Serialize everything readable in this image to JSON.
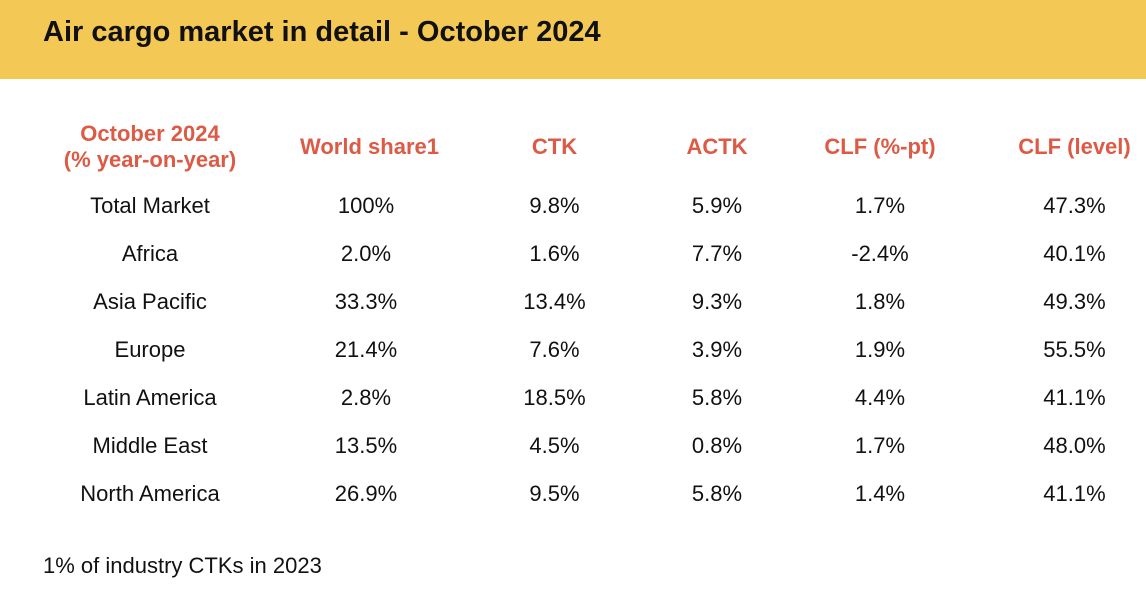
{
  "header": {
    "title": "Air cargo market in detail - October 2024"
  },
  "table": {
    "columns": [
      {
        "line1": "October 2024",
        "line2": "(% year-on-year)"
      },
      {
        "line1": "World share1"
      },
      {
        "line1": "CTK"
      },
      {
        "line1": "ACTK"
      },
      {
        "line1": "CLF (%-pt)"
      },
      {
        "line1": "CLF (level)"
      }
    ],
    "rows": [
      {
        "region": "Total Market",
        "world_share": "100%",
        "ctk": "9.8%",
        "actk": "5.9%",
        "clf_pt": "1.7%",
        "clf_level": "47.3%"
      },
      {
        "region": "Africa",
        "world_share": "2.0%",
        "ctk": "1.6%",
        "actk": "7.7%",
        "clf_pt": "-2.4%",
        "clf_level": "40.1%"
      },
      {
        "region": "Asia Pacific",
        "world_share": "33.3%",
        "ctk": "13.4%",
        "actk": "9.3%",
        "clf_pt": "1.8%",
        "clf_level": "49.3%"
      },
      {
        "region": "Europe",
        "world_share": "21.4%",
        "ctk": "7.6%",
        "actk": "3.9%",
        "clf_pt": "1.9%",
        "clf_level": "55.5%"
      },
      {
        "region": "Latin America",
        "world_share": "2.8%",
        "ctk": "18.5%",
        "actk": "5.8%",
        "clf_pt": "4.4%",
        "clf_level": "41.1%"
      },
      {
        "region": "Middle East",
        "world_share": "13.5%",
        "ctk": "4.5%",
        "actk": "0.8%",
        "clf_pt": "1.7%",
        "clf_level": "48.0%"
      },
      {
        "region": "North America",
        "world_share": "26.9%",
        "ctk": "9.5%",
        "actk": "5.8%",
        "clf_pt": "1.4%",
        "clf_level": "41.1%"
      }
    ]
  },
  "footnote": "1% of industry CTKs in 2023",
  "colors": {
    "header_bg": "#f4c854",
    "header_text": "#dd5a45"
  }
}
